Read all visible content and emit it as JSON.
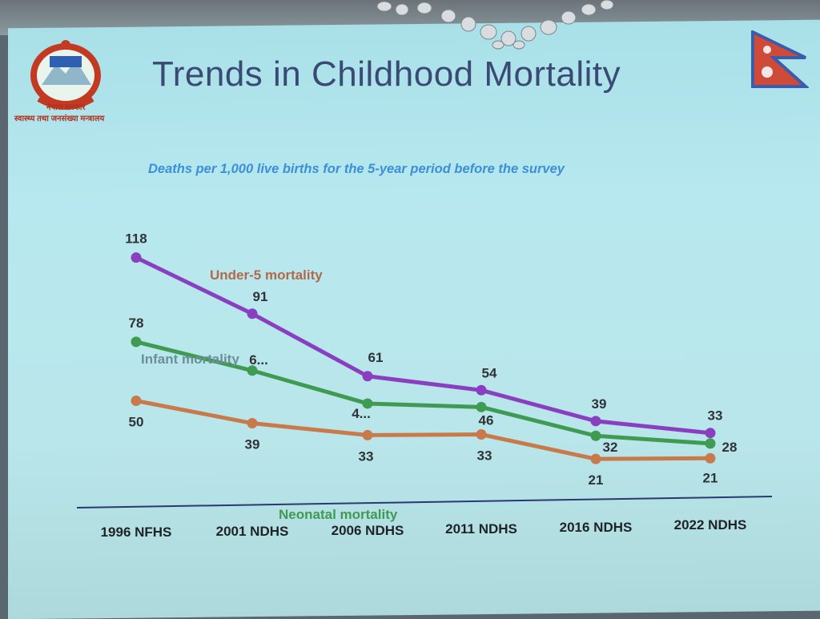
{
  "slide": {
    "title": "Trends in Childhood Mortality",
    "emblem_text_line1": "नेपाल सरकार",
    "emblem_text_line2": "स्वास्थ्य तथा जनसंख्या मन्त्रालय"
  },
  "colors": {
    "under5": "#8a3fc0",
    "infant": "#3f9a52",
    "neonatal": "#c87a4a",
    "title": "#3a4a74",
    "subtitle": "#3c8fd6"
  },
  "chart_data": {
    "type": "line",
    "subtitle": "Deaths per 1,000 live births for the 5-year period before the survey",
    "categories": [
      "1996 NFHS",
      "2001 NDHS",
      "2006 NDHS",
      "2011 NDHS",
      "2016 NDHS",
      "2022 NDHS"
    ],
    "series": [
      {
        "name": "Under-5 mortality",
        "values": [
          118,
          91,
          61,
          54,
          39,
          33
        ],
        "labels": [
          "118",
          "91",
          "61",
          "54",
          "39",
          "33"
        ]
      },
      {
        "name": "Infant mortality",
        "values": [
          78,
          64,
          48,
          46,
          32,
          28
        ],
        "labels": [
          "78",
          "6...",
          "4...",
          "46",
          "32",
          "28"
        ]
      },
      {
        "name": "Neonatal mortality",
        "values": [
          50,
          39,
          33,
          33,
          21,
          21
        ],
        "labels": [
          "50",
          "39",
          "33",
          "33",
          "21",
          "21"
        ]
      }
    ],
    "grid": false,
    "legend": "inline labels"
  }
}
